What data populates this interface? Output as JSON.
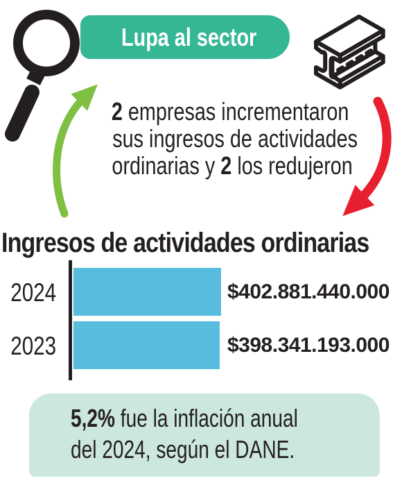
{
  "badge": {
    "label": "Lupa al sector"
  },
  "intro": {
    "line1_bold": "2",
    "line1_rest": " empresas incrementaron",
    "line2": "sus ingresos de actividades",
    "line3_pre": "ordinarias y ",
    "line3_bold": "2",
    "line3_rest": " los redujeron"
  },
  "chart_data": {
    "type": "bar",
    "orientation": "horizontal",
    "title": "Ingresos de actividades ordinarias",
    "categories": [
      "2024",
      "2023"
    ],
    "values": [
      402881440000,
      398341193000
    ],
    "value_labels": [
      "$402.881.440.000",
      "$398.341.193.000"
    ],
    "bar_color": "#57BCDE",
    "axis": "single left baseline, no gridlines, values labeled right of bars"
  },
  "footnote": {
    "bold": "5,2%",
    "line1_rest": " fue la inflación anual",
    "line2": "del 2024, según el DANE."
  },
  "colors": {
    "teal": "#35B795",
    "mint": "#CCE7E0",
    "bar_blue": "#57BCDE",
    "green": "#7FBF42",
    "red": "#E81F2E",
    "ink": "#231F20"
  }
}
